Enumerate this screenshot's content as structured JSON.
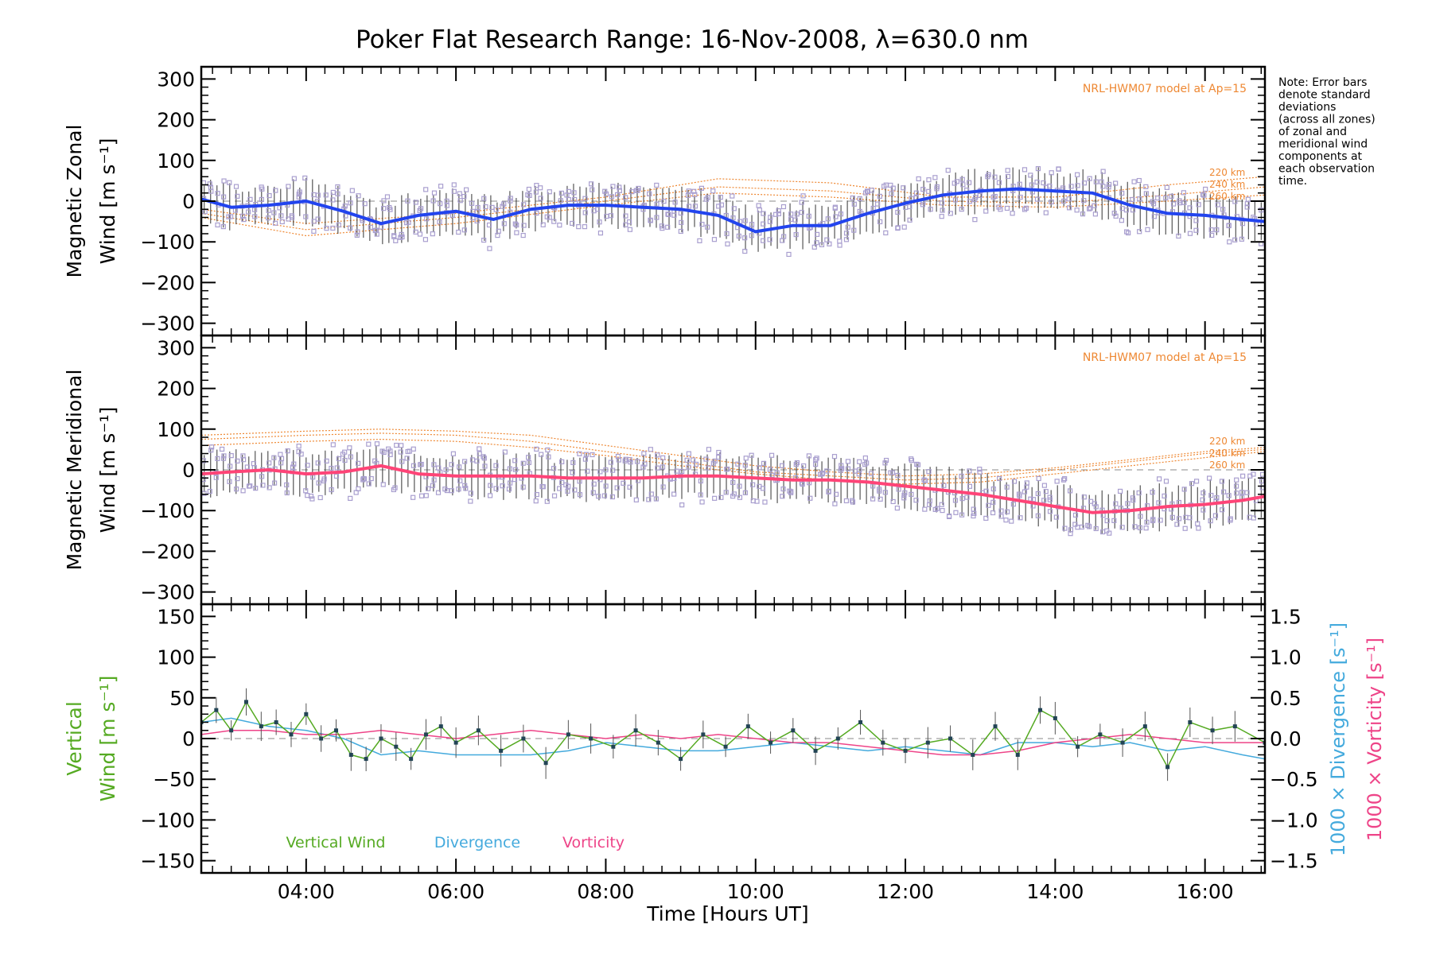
{
  "title": "Poker Flat Research Range: 16-Nov-2008, λ=630.0 nm",
  "note_lines": [
    "Note: Error bars",
    "denote standard",
    "deviations",
    "(across all zones)",
    "of zonal and",
    "meridional wind",
    "components at",
    "each observation",
    "time."
  ],
  "colors": {
    "zonal": "#2244ee",
    "meridional": "#ff4477",
    "vertical": "#55aa22",
    "divergence": "#44aadd",
    "vorticity": "#ee4488",
    "model": "#ee8833",
    "errorbar": "#333333",
    "scatter": "#a99fcf",
    "zero": "#888888"
  },
  "chart_data": [
    {
      "type": "line",
      "panel": "zonal",
      "ylabel_lines": [
        "Magnetic Zonal",
        "Wind [m s⁻¹]"
      ],
      "model_label": "NRL-HWM07 model at Ap=15",
      "model_altitudes": [
        "220 km",
        "240 km",
        "260 km"
      ],
      "xlim": [
        2.6,
        16.8
      ],
      "ylim": [
        -330,
        330
      ],
      "yticks": [
        -300,
        -200,
        -100,
        0,
        100,
        200,
        300
      ],
      "yticklabels": [
        "−300",
        "−200",
        "−100",
        "0",
        "100",
        "200",
        "300"
      ],
      "series": [
        {
          "x": [
            2.6,
            3.0,
            3.5,
            4.0,
            4.5,
            5.0,
            5.5,
            6.0,
            6.5,
            7.0,
            7.5,
            8.0,
            8.5,
            9.0,
            9.5,
            10.0,
            10.5,
            11.0,
            11.5,
            12.0,
            12.5,
            13.0,
            13.5,
            14.0,
            14.5,
            15.0,
            15.5,
            16.0,
            16.5,
            16.8
          ],
          "y": [
            5,
            -15,
            -10,
            0,
            -25,
            -55,
            -35,
            -25,
            -45,
            -20,
            -10,
            -10,
            -15,
            -20,
            -35,
            -75,
            -60,
            -60,
            -30,
            -5,
            15,
            25,
            30,
            25,
            20,
            -10,
            -30,
            -35,
            -45,
            -50
          ]
        }
      ],
      "model_curves": [
        {
          "name": "220 km",
          "x": [
            2.6,
            4,
            6,
            8,
            9.5,
            11,
            12.5,
            14,
            15.5,
            16.8
          ],
          "y": [
            -20,
            -55,
            -30,
            10,
            55,
            45,
            10,
            10,
            40,
            60
          ]
        },
        {
          "name": "240 km",
          "x": [
            2.6,
            4,
            6,
            8,
            9.5,
            11,
            12.5,
            14,
            15.5,
            16.8
          ],
          "y": [
            -30,
            -70,
            -40,
            0,
            35,
            25,
            0,
            -5,
            15,
            35
          ]
        },
        {
          "name": "260 km",
          "x": [
            2.6,
            4,
            6,
            8,
            9.5,
            11,
            12.5,
            14,
            15.5,
            16.8
          ],
          "y": [
            -40,
            -85,
            -55,
            -10,
            20,
            10,
            -10,
            -15,
            0,
            15
          ]
        }
      ]
    },
    {
      "type": "line",
      "panel": "meridional",
      "ylabel_lines": [
        "Magnetic Meridional",
        "Wind [m s⁻¹]"
      ],
      "model_label": "NRL-HWM07 model at Ap=15",
      "model_altitudes": [
        "220 km",
        "240 km",
        "260 km"
      ],
      "xlim": [
        2.6,
        16.8
      ],
      "ylim": [
        -330,
        330
      ],
      "yticks": [
        -300,
        -200,
        -100,
        0,
        100,
        200,
        300
      ],
      "yticklabels": [
        "−300",
        "−200",
        "−100",
        "0",
        "100",
        "200",
        "300"
      ],
      "series": [
        {
          "x": [
            2.6,
            3.0,
            3.5,
            4.0,
            4.5,
            5.0,
            5.5,
            6.0,
            6.5,
            7.0,
            7.5,
            8.0,
            8.5,
            9.0,
            9.5,
            10.0,
            10.5,
            11.0,
            11.5,
            12.0,
            12.5,
            13.0,
            13.5,
            14.0,
            14.5,
            15.0,
            15.5,
            16.0,
            16.5,
            16.8
          ],
          "y": [
            -10,
            -5,
            0,
            -10,
            -5,
            10,
            -10,
            -15,
            -15,
            -15,
            -20,
            -20,
            -20,
            -15,
            -15,
            -20,
            -25,
            -25,
            -30,
            -40,
            -50,
            -60,
            -75,
            -90,
            -105,
            -100,
            -90,
            -85,
            -75,
            -65
          ]
        }
      ],
      "model_curves": [
        {
          "name": "220 km",
          "x": [
            2.6,
            4,
            5,
            6,
            7,
            8,
            9,
            10,
            11,
            12,
            13,
            14,
            15,
            16,
            16.8
          ],
          "y": [
            85,
            95,
            100,
            95,
            85,
            60,
            35,
            10,
            -5,
            -15,
            -10,
            5,
            25,
            45,
            55
          ]
        },
        {
          "name": "240 km",
          "x": [
            2.6,
            4,
            5,
            6,
            7,
            8,
            9,
            10,
            11,
            12,
            13,
            14,
            15,
            16,
            16.8
          ],
          "y": [
            75,
            85,
            90,
            85,
            70,
            45,
            20,
            -5,
            -15,
            -25,
            -20,
            0,
            20,
            40,
            50
          ]
        },
        {
          "name": "260 km",
          "x": [
            2.6,
            4,
            5,
            6,
            7,
            8,
            9,
            10,
            11,
            12,
            13,
            14,
            15,
            16,
            16.8
          ],
          "y": [
            60,
            70,
            75,
            70,
            55,
            35,
            10,
            -10,
            -25,
            -35,
            -30,
            -10,
            10,
            30,
            45
          ]
        }
      ]
    },
    {
      "type": "line",
      "panel": "vertical",
      "ylabel_lines": [
        "Vertical",
        "Wind [m s⁻¹]"
      ],
      "right_ylabel": "1000 × Divergence [s⁻¹]",
      "right_ylabel2": "1000 × Vorticity [s⁻¹]",
      "xlim": [
        2.6,
        16.8
      ],
      "ylim": [
        -165,
        165
      ],
      "yticks": [
        -150,
        -100,
        -50,
        0,
        50,
        100,
        150
      ],
      "yticklabels": [
        "−150",
        "−100",
        "−50",
        "0",
        "50",
        "100",
        "150"
      ],
      "right_ylim": [
        -1.65,
        1.65
      ],
      "right_yticks": [
        -1.5,
        -1.0,
        -0.5,
        0.0,
        0.5,
        1.0,
        1.5
      ],
      "right_yticklabels": [
        "−1.5",
        "−1.0",
        "−0.5",
        "0.0",
        "0.5",
        "1.0",
        "1.5"
      ],
      "legend": [
        "Vertical Wind",
        "Divergence",
        "Vorticity"
      ],
      "series": [
        {
          "name": "Vertical Wind",
          "x": [
            2.6,
            2.8,
            3.0,
            3.2,
            3.4,
            3.6,
            3.8,
            4.0,
            4.2,
            4.4,
            4.6,
            4.8,
            5.0,
            5.2,
            5.4,
            5.6,
            5.8,
            6.0,
            6.3,
            6.6,
            6.9,
            7.2,
            7.5,
            7.8,
            8.1,
            8.4,
            8.7,
            9.0,
            9.3,
            9.6,
            9.9,
            10.2,
            10.5,
            10.8,
            11.1,
            11.4,
            11.7,
            12.0,
            12.3,
            12.6,
            12.9,
            13.2,
            13.5,
            13.8,
            14.0,
            14.3,
            14.6,
            14.9,
            15.2,
            15.5,
            15.8,
            16.1,
            16.4,
            16.8
          ],
          "y": [
            20,
            35,
            10,
            45,
            15,
            20,
            5,
            30,
            0,
            10,
            -20,
            -25,
            0,
            -10,
            -25,
            5,
            15,
            -5,
            10,
            -15,
            0,
            -30,
            5,
            0,
            -10,
            10,
            -5,
            -25,
            5,
            -10,
            15,
            -5,
            10,
            -15,
            0,
            20,
            -5,
            -15,
            -5,
            0,
            -20,
            15,
            -20,
            35,
            25,
            -10,
            5,
            -5,
            15,
            -35,
            20,
            10,
            15,
            -5
          ]
        },
        {
          "name": "Divergence",
          "x": [
            2.6,
            3.0,
            3.5,
            4.0,
            4.5,
            5.0,
            5.5,
            6.0,
            6.5,
            7.0,
            7.5,
            8.0,
            8.5,
            9.0,
            9.5,
            10.0,
            10.5,
            11.0,
            11.5,
            12.0,
            12.5,
            13.0,
            13.5,
            14.0,
            14.5,
            15.0,
            15.5,
            16.0,
            16.5,
            16.8
          ],
          "y": [
            0.2,
            0.25,
            0.15,
            0.1,
            0.0,
            -0.2,
            -0.15,
            -0.2,
            -0.2,
            -0.2,
            -0.15,
            -0.05,
            -0.1,
            -0.15,
            -0.15,
            -0.1,
            -0.05,
            -0.1,
            -0.15,
            -0.1,
            -0.15,
            -0.2,
            -0.05,
            -0.05,
            -0.1,
            -0.05,
            -0.15,
            -0.1,
            -0.2,
            -0.25
          ]
        },
        {
          "name": "Vorticity",
          "x": [
            2.6,
            3.0,
            3.5,
            4.0,
            4.5,
            5.0,
            5.5,
            6.0,
            6.5,
            7.0,
            7.5,
            8.0,
            8.5,
            9.0,
            9.5,
            10.0,
            10.5,
            11.0,
            11.5,
            12.0,
            12.5,
            13.0,
            13.5,
            14.0,
            14.5,
            15.0,
            15.5,
            16.0,
            16.5,
            16.8
          ],
          "y": [
            0.05,
            0.1,
            0.1,
            0.05,
            0.05,
            0.1,
            0.05,
            0.0,
            0.05,
            0.1,
            0.05,
            0.0,
            0.05,
            0.0,
            0.05,
            0.0,
            -0.05,
            -0.05,
            -0.1,
            -0.15,
            -0.2,
            -0.2,
            -0.15,
            -0.05,
            0.0,
            0.05,
            0.0,
            -0.05,
            -0.05,
            -0.05
          ]
        }
      ]
    }
  ],
  "x_axis": {
    "xlabel": "Time [Hours UT]",
    "ticks": [
      4,
      6,
      8,
      10,
      12,
      14,
      16
    ],
    "ticklabels": [
      "04:00",
      "06:00",
      "08:00",
      "10:00",
      "12:00",
      "14:00",
      "16:00"
    ]
  }
}
